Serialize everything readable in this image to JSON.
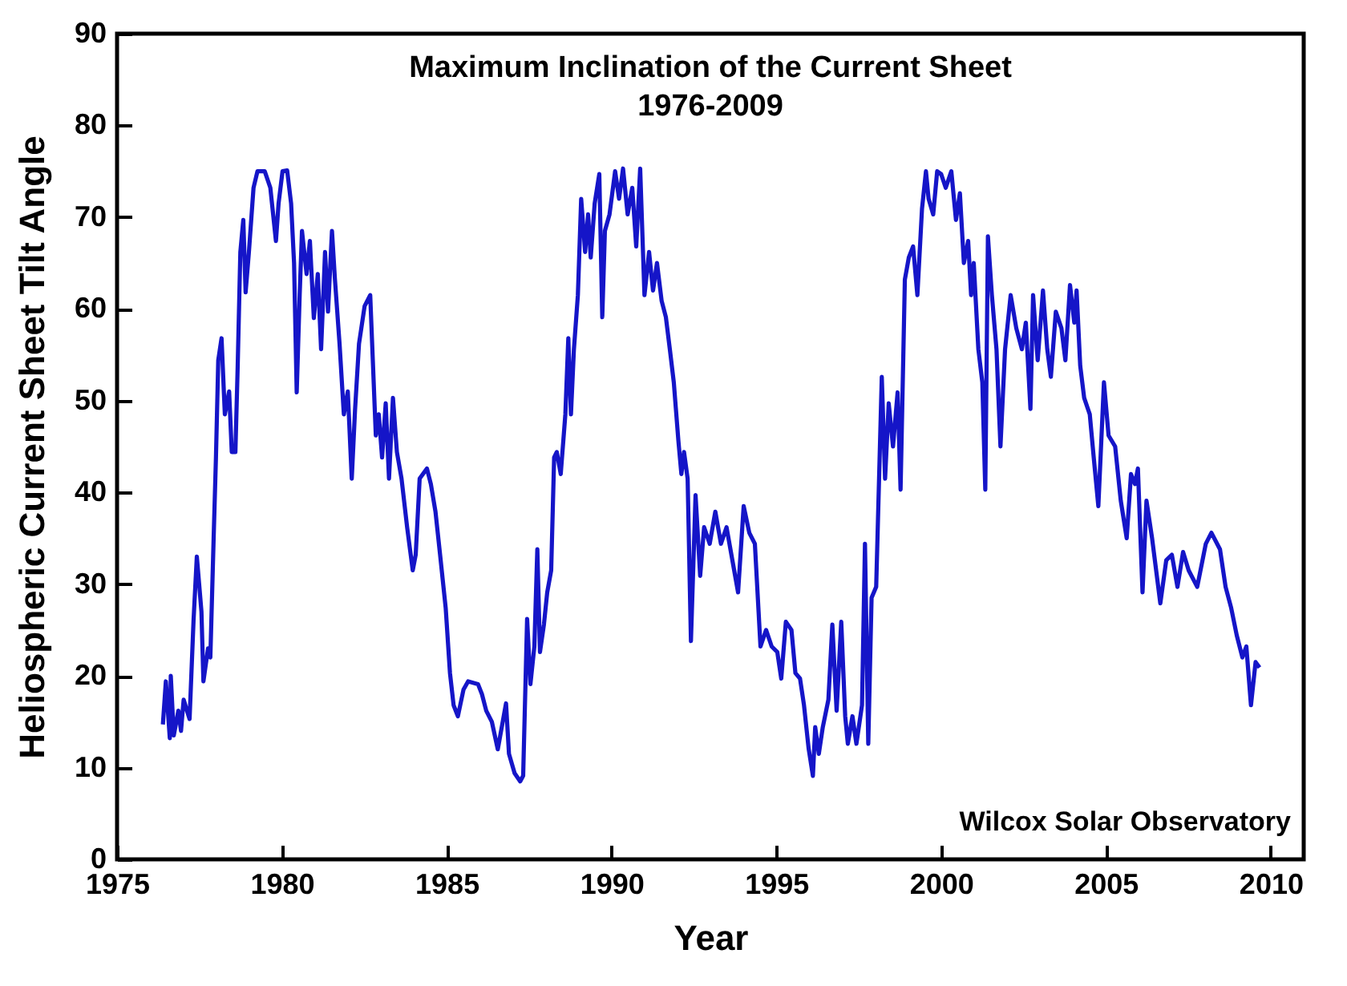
{
  "chart_data": {
    "type": "line",
    "title": "Maximum Inclination of the Current Sheet",
    "subtitle": "1976-2009",
    "xlabel": "Year",
    "ylabel": "Heliospheric Current Sheet Tilt Angle",
    "annotations": [
      "Wilcox Solar Observatory"
    ],
    "xlim": [
      1975,
      2011
    ],
    "ylim": [
      0,
      90
    ],
    "xticks": [
      1975,
      1980,
      1985,
      1990,
      1995,
      2000,
      2005,
      2010
    ],
    "yticks": [
      0,
      10,
      20,
      30,
      40,
      50,
      60,
      70,
      80,
      90
    ],
    "grid": false,
    "marker": "none",
    "line_style": "solid",
    "series": [
      {
        "color": "#1515c8",
        "x": [
          1976.39,
          1976.48,
          1976.6,
          1976.63,
          1976.72,
          1976.86,
          1976.94,
          1977.02,
          1977.2,
          1977.32,
          1977.42,
          1977.56,
          1977.62,
          1977.76,
          1977.83,
          1977.93,
          1978.0,
          1978.07,
          1978.17,
          1978.27,
          1978.4,
          1978.48,
          1978.59,
          1978.66,
          1978.74,
          1978.83,
          1978.9,
          1979.0,
          1979.14,
          1979.26,
          1979.48,
          1979.65,
          1979.82,
          1979.9,
          1980.02,
          1980.16,
          1980.28,
          1980.37,
          1980.45,
          1980.54,
          1980.61,
          1980.75,
          1980.85,
          1980.97,
          1981.09,
          1981.19,
          1981.31,
          1981.4,
          1981.52,
          1981.61,
          1981.75,
          1981.88,
          1982.0,
          1982.12,
          1982.22,
          1982.34,
          1982.51,
          1982.68,
          1982.85,
          1982.94,
          1983.04,
          1983.15,
          1983.25,
          1983.37,
          1983.49,
          1983.63,
          1983.8,
          1983.97,
          1984.06,
          1984.18,
          1984.4,
          1984.52,
          1984.66,
          1984.8,
          1984.97,
          1985.1,
          1985.21,
          1985.34,
          1985.51,
          1985.65,
          1985.95,
          1986.07,
          1986.2,
          1986.37,
          1986.55,
          1986.8,
          1986.89,
          1987.06,
          1987.23,
          1987.32,
          1987.44,
          1987.54,
          1987.66,
          1987.75,
          1987.83,
          1987.95,
          1988.05,
          1988.17,
          1988.26,
          1988.34,
          1988.46,
          1988.6,
          1988.69,
          1988.77,
          1988.86,
          1988.98,
          1989.08,
          1989.2,
          1989.29,
          1989.37,
          1989.49,
          1989.63,
          1989.72,
          1989.8,
          1989.94,
          1990.11,
          1990.23,
          1990.35,
          1990.49,
          1990.63,
          1990.75,
          1990.87,
          1991.0,
          1991.14,
          1991.26,
          1991.38,
          1991.52,
          1991.65,
          1991.77,
          1991.89,
          1992.03,
          1992.12,
          1992.2,
          1992.31,
          1992.41,
          1992.55,
          1992.69,
          1992.81,
          1992.98,
          1993.15,
          1993.32,
          1993.49,
          1993.84,
          1994.01,
          1994.18,
          1994.35,
          1994.52,
          1994.69,
          1994.86,
          1995.03,
          1995.15,
          1995.29,
          1995.46,
          1995.58,
          1995.72,
          1995.84,
          1995.98,
          1996.11,
          1996.18,
          1996.29,
          1996.41,
          1996.58,
          1996.7,
          1996.83,
          1996.97,
          1997.09,
          1997.17,
          1997.31,
          1997.43,
          1997.6,
          1997.69,
          1997.79,
          1997.89,
          1998.03,
          1998.2,
          1998.3,
          1998.41,
          1998.54,
          1998.68,
          1998.77,
          1998.9,
          1999.02,
          1999.15,
          1999.28,
          1999.42,
          1999.54,
          1999.62,
          1999.76,
          1999.88,
          2000.0,
          2000.14,
          2000.31,
          2000.45,
          2000.57,
          2000.69,
          2000.82,
          2000.91,
          2000.99,
          2001.13,
          2001.25,
          2001.34,
          2001.42,
          2001.54,
          2001.68,
          2001.8,
          2001.94,
          2002.11,
          2002.28,
          2002.45,
          2002.57,
          2002.71,
          2002.79,
          2002.93,
          2003.09,
          2003.22,
          2003.33,
          2003.48,
          2003.65,
          2003.77,
          2003.91,
          2004.04,
          2004.11,
          2004.22,
          2004.34,
          2004.51,
          2004.63,
          2004.77,
          2004.94,
          2005.08,
          2005.28,
          2005.45,
          2005.63,
          2005.76,
          2005.88,
          2005.97,
          2006.11,
          2006.23,
          2006.4,
          2006.65,
          2006.83,
          2007.0,
          2007.17,
          2007.34,
          2007.51,
          2007.77,
          2008.03,
          2008.2,
          2008.46,
          2008.63,
          2008.8,
          2008.97,
          2009.14,
          2009.26,
          2009.4,
          2009.54,
          2009.66
        ],
        "values": [
          14.7,
          19.4,
          13.2,
          20.0,
          13.5,
          16.2,
          14.0,
          17.4,
          15.3,
          26.0,
          33.0,
          27.0,
          19.4,
          23.0,
          22.0,
          35.0,
          43.8,
          54.4,
          56.8,
          48.5,
          51.0,
          44.4,
          44.4,
          53.8,
          66.2,
          69.7,
          61.8,
          66.2,
          73.2,
          75.0,
          75.0,
          73.2,
          67.4,
          71.5,
          75.0,
          75.1,
          71.5,
          65.0,
          50.9,
          61.5,
          68.5,
          63.8,
          67.4,
          59.0,
          63.8,
          55.6,
          66.2,
          59.7,
          68.5,
          63.2,
          56.2,
          48.5,
          51.0,
          41.5,
          49.0,
          56.2,
          60.3,
          61.5,
          46.2,
          48.5,
          43.8,
          49.7,
          41.5,
          50.3,
          44.4,
          41.5,
          36.2,
          31.5,
          33.2,
          41.5,
          42.6,
          40.9,
          37.9,
          33.2,
          27.4,
          20.3,
          16.8,
          15.6,
          18.5,
          19.4,
          19.1,
          18.0,
          16.2,
          15.0,
          12.0,
          17.0,
          11.5,
          9.4,
          8.5,
          9.1,
          26.2,
          19.1,
          23.2,
          33.8,
          22.6,
          25.6,
          29.1,
          31.5,
          43.8,
          44.4,
          42.0,
          48.5,
          56.8,
          48.5,
          55.6,
          61.5,
          72.0,
          66.2,
          70.3,
          65.6,
          71.5,
          74.7,
          59.1,
          68.5,
          70.3,
          75.0,
          72.0,
          75.3,
          70.3,
          73.2,
          66.8,
          75.3,
          61.5,
          66.2,
          62.0,
          65.0,
          60.9,
          59.1,
          55.6,
          52.0,
          45.6,
          42.0,
          44.4,
          41.5,
          23.8,
          39.7,
          30.9,
          36.2,
          34.4,
          37.9,
          34.4,
          36.2,
          29.1,
          38.5,
          35.6,
          34.4,
          23.2,
          25.0,
          23.2,
          22.6,
          19.7,
          25.9,
          25.0,
          20.3,
          19.7,
          16.8,
          12.1,
          9.1,
          14.4,
          11.5,
          14.4,
          17.4,
          25.6,
          16.2,
          25.9,
          15.6,
          12.6,
          15.6,
          12.6,
          16.8,
          34.4,
          12.6,
          28.5,
          29.7,
          52.6,
          41.5,
          49.7,
          45.0,
          50.9,
          40.3,
          63.2,
          65.6,
          66.8,
          61.5,
          70.9,
          75.0,
          72.0,
          70.3,
          75.0,
          74.7,
          73.2,
          75.0,
          69.7,
          72.6,
          65.0,
          67.4,
          61.5,
          65.0,
          55.6,
          52.0,
          40.3,
          67.9,
          61.5,
          55.6,
          45.0,
          55.6,
          61.5,
          57.9,
          55.6,
          58.5,
          49.1,
          61.5,
          54.4,
          62.0,
          55.6,
          52.6,
          59.7,
          57.9,
          54.4,
          62.6,
          58.5,
          62.0,
          53.8,
          50.3,
          48.5,
          43.8,
          38.5,
          52.0,
          46.2,
          45.0,
          39.1,
          35.0,
          42.0,
          40.9,
          42.6,
          29.1,
          39.1,
          35.0,
          27.9,
          32.6,
          33.2,
          29.7,
          33.5,
          31.5,
          29.7,
          34.4,
          35.6,
          33.8,
          29.7,
          27.4,
          24.4,
          22.0,
          23.2,
          16.8,
          21.5,
          20.9
        ]
      }
    ]
  }
}
